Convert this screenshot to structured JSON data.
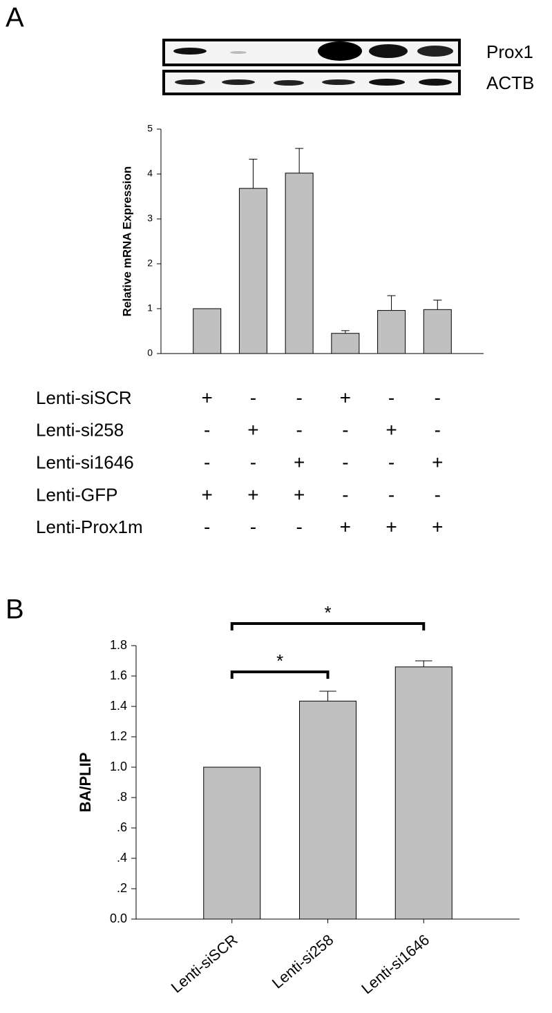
{
  "chart_data": [
    {
      "type": "bar",
      "panel": "A",
      "blot_labels": [
        "Prox1",
        "ACTB"
      ],
      "ylabel": "Relative mRNA Expression",
      "values": [
        1,
        3.68,
        4.02,
        0.45,
        0.96,
        0.98
      ],
      "errors": [
        null,
        0.65,
        0.55,
        0.06,
        0.33,
        0.21
      ],
      "color": "#c0c0c0",
      "ylim": [
        0,
        5
      ],
      "yticks": [
        0,
        1,
        2,
        3,
        4,
        5
      ],
      "conditions": [
        {
          "name": "Lenti-siSCR",
          "marks": [
            "+",
            "-",
            "-",
            "+",
            "-",
            "-"
          ]
        },
        {
          "name": "Lenti-si258",
          "marks": [
            "-",
            "+",
            "-",
            "-",
            "+",
            "-"
          ]
        },
        {
          "name": "Lenti-si1646",
          "marks": [
            "-",
            "-",
            "+",
            "-",
            "-",
            "+"
          ]
        },
        {
          "name": "Lenti-GFP",
          "marks": [
            "+",
            "+",
            "+",
            "-",
            "-",
            "-"
          ]
        },
        {
          "name": "Lenti-Prox1m",
          "marks": [
            "-",
            "-",
            "-",
            "+",
            "+",
            "+"
          ]
        }
      ]
    },
    {
      "type": "bar",
      "panel": "B",
      "ylabel": "BA/PLIP",
      "categories": [
        "Lenti-siSCR",
        "Lenti-si258",
        "Lenti-si1646"
      ],
      "values": [
        1.0,
        1.435,
        1.66
      ],
      "errors": [
        null,
        0.065,
        0.04
      ],
      "color": "#c0c0c0",
      "ylim": [
        0,
        1.8
      ],
      "yticks": [
        {
          "value": 0,
          "label": "0.0"
        },
        {
          "value": 0.2,
          "label": ".2"
        },
        {
          "value": 0.4,
          "label": ".4"
        },
        {
          "value": 0.6,
          "label": ".6"
        },
        {
          "value": 0.8,
          "label": ".8"
        },
        {
          "value": 1.0,
          "label": "1.0"
        },
        1.2,
        1.4,
        1.6,
        1.8
      ],
      "significance": [
        {
          "from": 0,
          "to": 1,
          "label": "*"
        },
        {
          "from": 0,
          "to": 2,
          "label": "*"
        }
      ]
    }
  ]
}
